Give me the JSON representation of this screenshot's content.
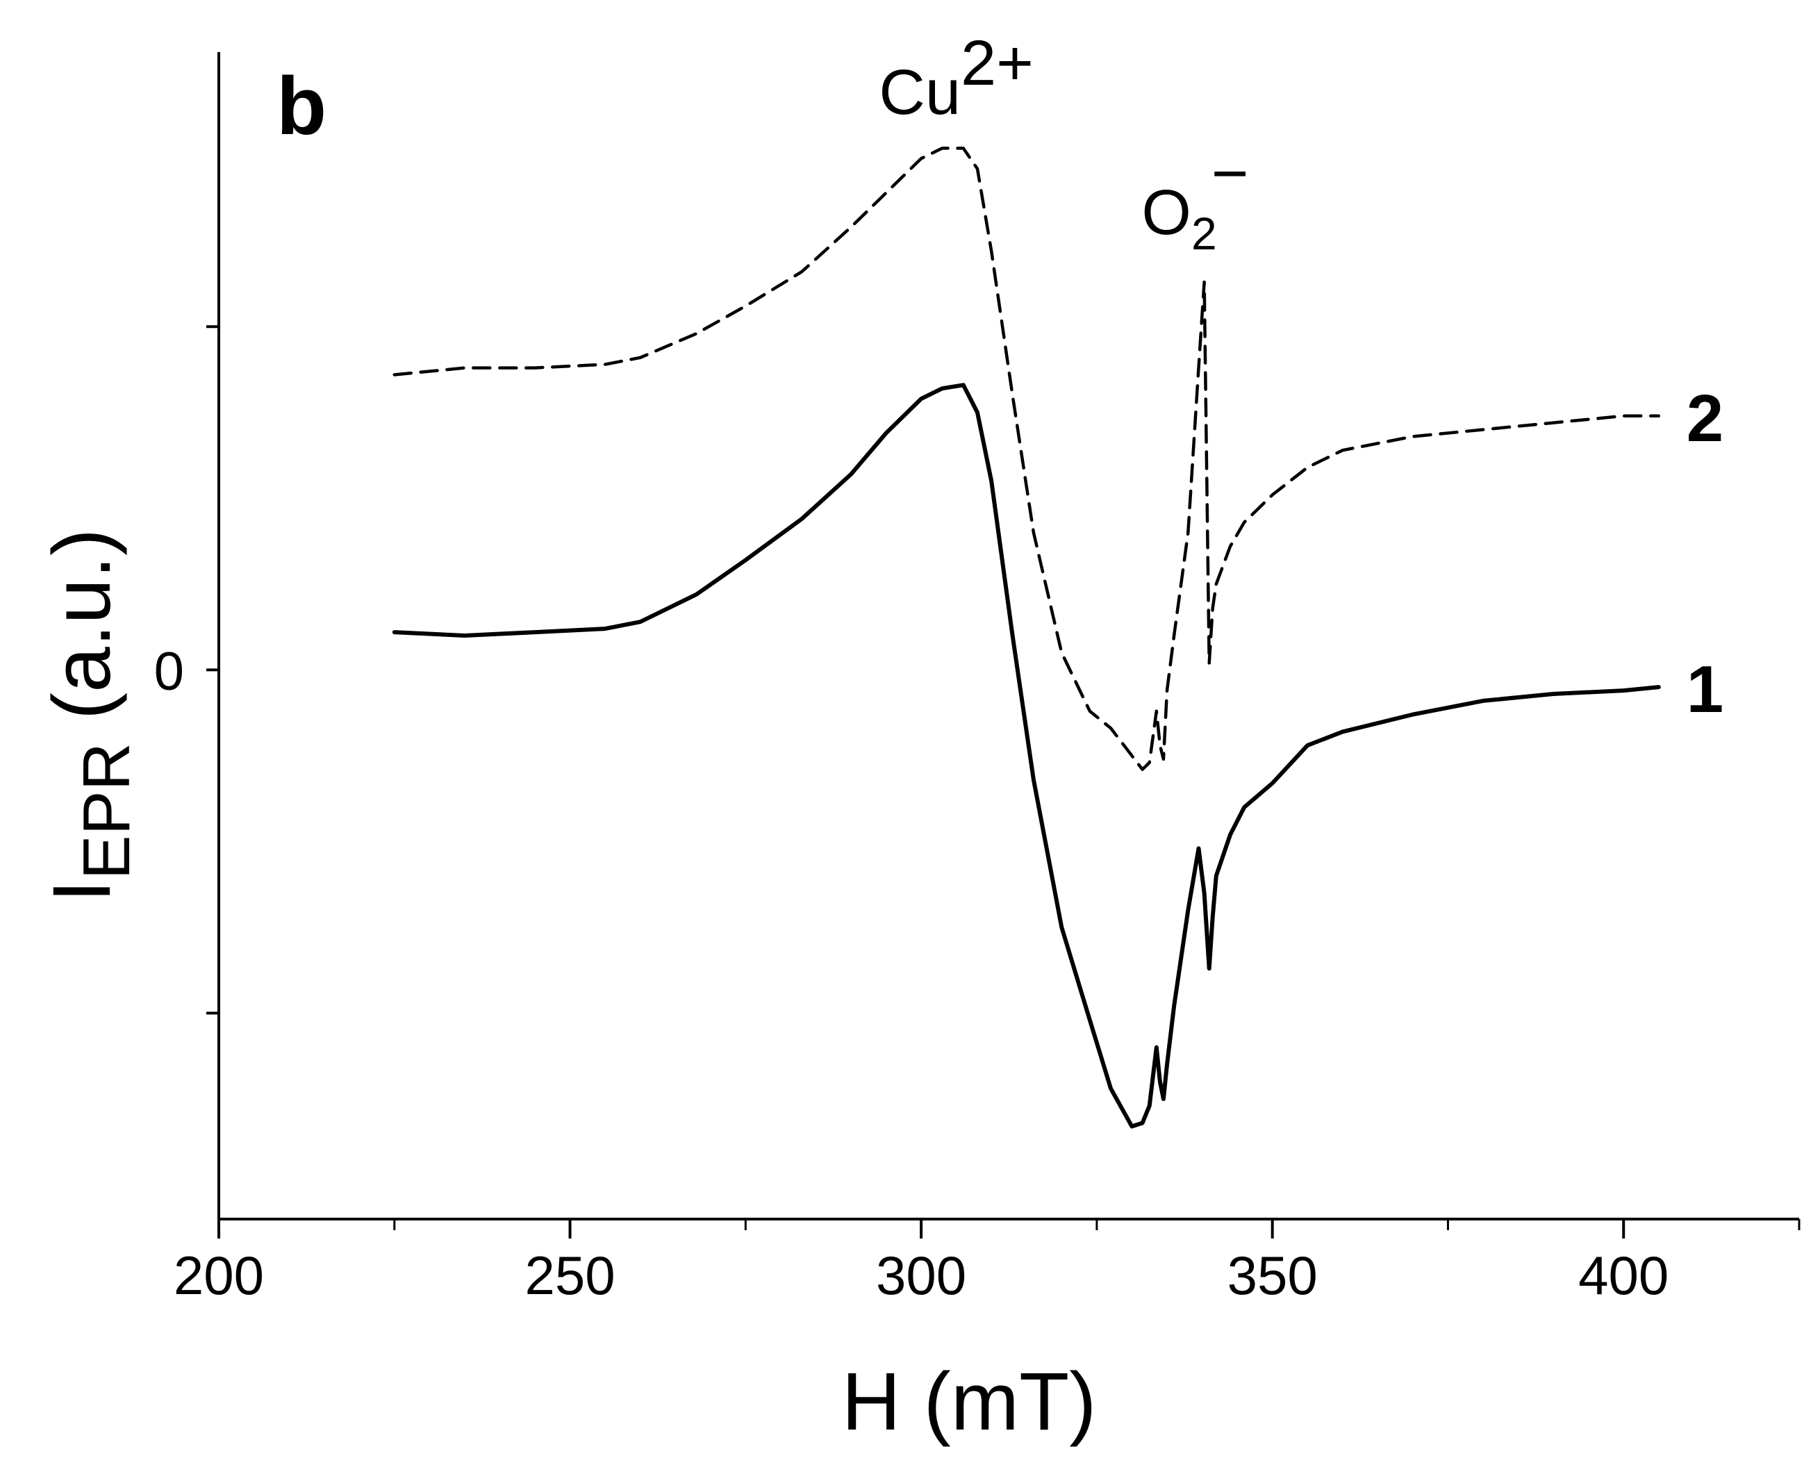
{
  "panel_label": "b",
  "chart_data": {
    "type": "line",
    "xlabel": "H (mT)",
    "ylabel": {
      "main": "I",
      "sub": "EPR",
      "rest": " (a.u.)"
    },
    "xlim": [
      200,
      425
    ],
    "ylim": [
      -1.6,
      1.8
    ],
    "x_ticks": [
      200,
      250,
      300,
      350,
      400
    ],
    "y_ticks": [
      {
        "value": 0,
        "label": "0"
      },
      {
        "value": 1.0,
        "label": ""
      },
      {
        "value": -1.0,
        "label": ""
      }
    ],
    "annotations": [
      {
        "base": "Cu",
        "sup": "2+",
        "sub": "",
        "x": 305,
        "y": 1.62
      },
      {
        "base": "O",
        "sup": "−",
        "sub": "2",
        "x": 339,
        "y": 1.27
      }
    ],
    "series": [
      {
        "name": "1",
        "style": "solid",
        "x": [
          225,
          235,
          245,
          255,
          260,
          268,
          275,
          283,
          290,
          295,
          300,
          303,
          306,
          308,
          310,
          313,
          316,
          320,
          324,
          327,
          330,
          331.5,
          332.5,
          333.5,
          334,
          334.5,
          335,
          336,
          338,
          339.5,
          340.3,
          341,
          341.5,
          342,
          344,
          346,
          350,
          355,
          360,
          370,
          380,
          390,
          400,
          405
        ],
        "y": [
          0.11,
          0.1,
          0.11,
          0.12,
          0.14,
          0.22,
          0.32,
          0.44,
          0.57,
          0.69,
          0.79,
          0.82,
          0.83,
          0.75,
          0.55,
          0.1,
          -0.32,
          -0.75,
          -1.02,
          -1.22,
          -1.33,
          -1.32,
          -1.27,
          -1.1,
          -1.2,
          -1.25,
          -1.15,
          -0.98,
          -0.7,
          -0.52,
          -0.65,
          -0.87,
          -0.72,
          -0.6,
          -0.48,
          -0.4,
          -0.33,
          -0.22,
          -0.18,
          -0.13,
          -0.09,
          -0.07,
          -0.06,
          -0.05
        ]
      },
      {
        "name": "2",
        "style": "dashed",
        "x": [
          225,
          235,
          245,
          255,
          260,
          268,
          275,
          283,
          290,
          295,
          300,
          303,
          306,
          308,
          310,
          313,
          316,
          320,
          324,
          327,
          330,
          331.5,
          332.5,
          333.5,
          334,
          334.5,
          335,
          336,
          338,
          339.5,
          340.3,
          341,
          341.5,
          342,
          344,
          346,
          350,
          355,
          360,
          370,
          380,
          390,
          400,
          405
        ],
        "y": [
          0.86,
          0.88,
          0.88,
          0.89,
          0.91,
          0.98,
          1.06,
          1.16,
          1.29,
          1.39,
          1.49,
          1.52,
          1.52,
          1.46,
          1.22,
          0.8,
          0.4,
          0.05,
          -0.12,
          -0.17,
          -0.25,
          -0.29,
          -0.27,
          -0.12,
          -0.22,
          -0.26,
          -0.06,
          0.1,
          0.4,
          0.88,
          1.13,
          0.02,
          0.18,
          0.25,
          0.36,
          0.43,
          0.51,
          0.59,
          0.64,
          0.68,
          0.7,
          0.72,
          0.74,
          0.74
        ]
      }
    ]
  }
}
